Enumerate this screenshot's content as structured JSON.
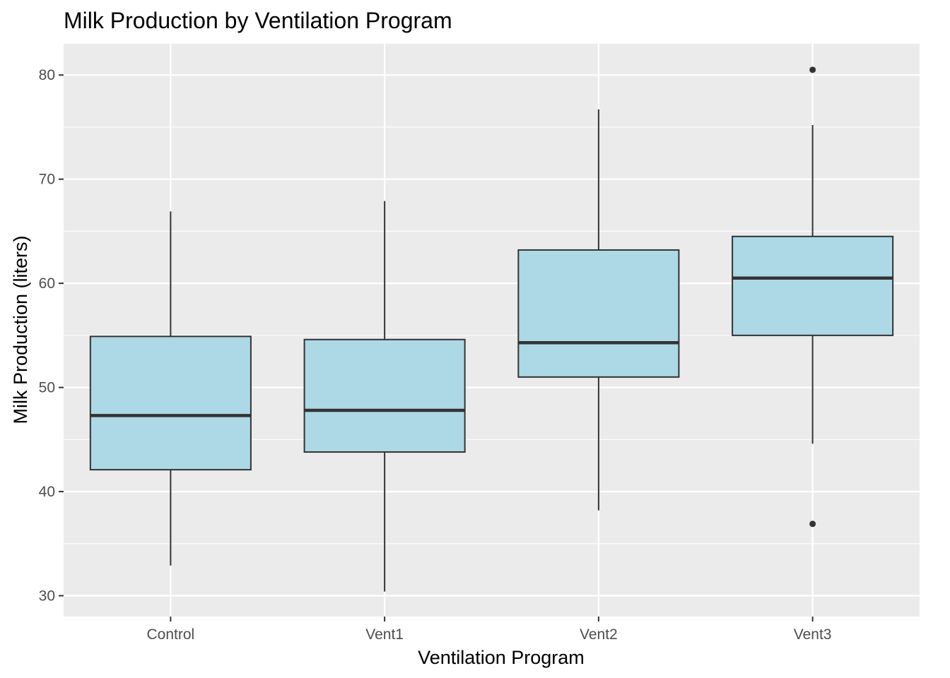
{
  "chart_data": {
    "type": "box",
    "title": "Milk Production by Ventilation Program",
    "xlabel": "Ventilation Program",
    "ylabel": "Milk Production (liters)",
    "ylim": [
      28,
      83
    ],
    "y_ticks": [
      30,
      40,
      50,
      60,
      70,
      80
    ],
    "grid": true,
    "categories": [
      "Control",
      "Vent1",
      "Vent2",
      "Vent3"
    ],
    "boxes": [
      {
        "category": "Control",
        "whisker_low": 32.9,
        "q1": 42.1,
        "median": 47.3,
        "q3": 54.9,
        "whisker_high": 66.9,
        "outliers": []
      },
      {
        "category": "Vent1",
        "whisker_low": 30.4,
        "q1": 43.8,
        "median": 47.8,
        "q3": 54.6,
        "whisker_high": 67.9,
        "outliers": []
      },
      {
        "category": "Vent2",
        "whisker_low": 38.2,
        "q1": 51.0,
        "median": 54.3,
        "q3": 63.2,
        "whisker_high": 76.7,
        "outliers": []
      },
      {
        "category": "Vent3",
        "whisker_low": 44.6,
        "q1": 55.0,
        "median": 60.5,
        "q3": 64.5,
        "whisker_high": 75.2,
        "outliers": [
          80.5,
          36.9
        ]
      }
    ],
    "colors": {
      "panel_background": "#ebebeb",
      "grid_major": "#ffffff",
      "box_fill": "#add8e6",
      "box_line": "#333333"
    }
  }
}
